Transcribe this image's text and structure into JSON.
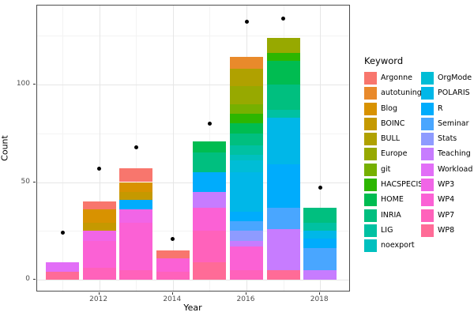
{
  "figure": {
    "ylabel": "Count",
    "xlabel": "Year"
  },
  "legend": {
    "title": "Keyword",
    "columns": [
      12,
      11
    ]
  },
  "palette": [
    {
      "name": "Argonne",
      "color": "#F8766D"
    },
    {
      "name": "autotuning",
      "color": "#E98A2B"
    },
    {
      "name": "Blog",
      "color": "#D89200"
    },
    {
      "name": "BOINC",
      "color": "#C59900"
    },
    {
      "name": "BULL",
      "color": "#B0A100"
    },
    {
      "name": "Europe",
      "color": "#97A900"
    },
    {
      "name": "git",
      "color": "#76B000"
    },
    {
      "name": "HACSPECIS",
      "color": "#2CB600"
    },
    {
      "name": "HOME",
      "color": "#00BC51"
    },
    {
      "name": "INRIA",
      "color": "#00BF7F"
    },
    {
      "name": "LIG",
      "color": "#00C1A2"
    },
    {
      "name": "noexport",
      "color": "#00C0BF"
    },
    {
      "name": "OrgMode",
      "color": "#00BDD6"
    },
    {
      "name": "POLARIS",
      "color": "#00B7E8"
    },
    {
      "name": "R",
      "color": "#00ACFC"
    },
    {
      "name": "Seminar",
      "color": "#49A6FF"
    },
    {
      "name": "Stats",
      "color": "#8E9BFF"
    },
    {
      "name": "Teaching",
      "color": "#C77CFF"
    },
    {
      "name": "Workload",
      "color": "#E26EF7"
    },
    {
      "name": "WP3",
      "color": "#F165E7"
    },
    {
      "name": "WP4",
      "color": "#FB61D5"
    },
    {
      "name": "WP7",
      "color": "#FF62BB"
    },
    {
      "name": "WP8",
      "color": "#FF6B97"
    }
  ],
  "chart_data": {
    "type": "bar",
    "stacked": true,
    "title": "",
    "xlabel": "Year",
    "ylabel": "Count",
    "legend_title": "Keyword",
    "legend_position": "right",
    "grid": true,
    "ylim": [
      0,
      140
    ],
    "y_major_ticks": [
      0,
      50,
      100
    ],
    "y_minor_gridlines": [
      25,
      75,
      125
    ],
    "x_major_ticks": [
      2012,
      2014,
      2016,
      2018
    ],
    "x_minor_gridlines": [
      2011,
      2013,
      2015,
      2017
    ],
    "point_series_note": "black dots above each bar",
    "bars": [
      {
        "year": 2011,
        "point": 24,
        "segments": [
          {
            "keyword": "WP8",
            "value": 4
          },
          {
            "keyword": "Workload",
            "value": 5
          }
        ]
      },
      {
        "year": 2012,
        "point": 57,
        "segments": [
          {
            "keyword": "WP7",
            "value": 6
          },
          {
            "keyword": "WP4",
            "value": 14
          },
          {
            "keyword": "WP3",
            "value": 5
          },
          {
            "keyword": "BOINC",
            "value": 4
          },
          {
            "keyword": "Blog",
            "value": 7
          },
          {
            "keyword": "Argonne",
            "value": 4
          }
        ]
      },
      {
        "year": 2013,
        "point": 68,
        "segments": [
          {
            "keyword": "WP7",
            "value": 5
          },
          {
            "keyword": "WP4",
            "value": 24
          },
          {
            "keyword": "WP3",
            "value": 7
          },
          {
            "keyword": "R",
            "value": 5
          },
          {
            "keyword": "BOINC",
            "value": 4
          },
          {
            "keyword": "Blog",
            "value": 5
          },
          {
            "keyword": "Argonne",
            "value": 7
          }
        ]
      },
      {
        "year": 2014,
        "point": 21,
        "segments": [
          {
            "keyword": "WP7",
            "value": 4
          },
          {
            "keyword": "WP4",
            "value": 7
          },
          {
            "keyword": "Argonne",
            "value": 4
          }
        ]
      },
      {
        "year": 2015,
        "point": 80,
        "segments": [
          {
            "keyword": "WP8",
            "value": 9
          },
          {
            "keyword": "WP7",
            "value": 16
          },
          {
            "keyword": "WP4",
            "value": 12
          },
          {
            "keyword": "Teaching",
            "value": 8
          },
          {
            "keyword": "R",
            "value": 10
          },
          {
            "keyword": "INRIA",
            "value": 10
          },
          {
            "keyword": "HOME",
            "value": 6
          }
        ]
      },
      {
        "year": 2016,
        "point": 132,
        "segments": [
          {
            "keyword": "WP7",
            "value": 5
          },
          {
            "keyword": "WP4",
            "value": 12
          },
          {
            "keyword": "Teaching",
            "value": 3
          },
          {
            "keyword": "Stats",
            "value": 5
          },
          {
            "keyword": "Seminar",
            "value": 5
          },
          {
            "keyword": "R",
            "value": 5
          },
          {
            "keyword": "POLARIS",
            "value": 20
          },
          {
            "keyword": "OrgMode",
            "value": 6
          },
          {
            "keyword": "noexport",
            "value": 3
          },
          {
            "keyword": "LIG",
            "value": 5
          },
          {
            "keyword": "INRIA",
            "value": 6
          },
          {
            "keyword": "HOME",
            "value": 5
          },
          {
            "keyword": "HACSPECIS",
            "value": 5
          },
          {
            "keyword": "git",
            "value": 5
          },
          {
            "keyword": "Europe",
            "value": 9
          },
          {
            "keyword": "BULL",
            "value": 9
          },
          {
            "keyword": "autotuning",
            "value": 6
          }
        ]
      },
      {
        "year": 2017,
        "point": 134,
        "segments": [
          {
            "keyword": "WP8",
            "value": 5
          },
          {
            "keyword": "Teaching",
            "value": 21
          },
          {
            "keyword": "Seminar",
            "value": 11
          },
          {
            "keyword": "R",
            "value": 22
          },
          {
            "keyword": "POLARIS",
            "value": 24
          },
          {
            "keyword": "LIG",
            "value": 4
          },
          {
            "keyword": "INRIA",
            "value": 13
          },
          {
            "keyword": "HOME",
            "value": 12
          },
          {
            "keyword": "HACSPECIS",
            "value": 4
          },
          {
            "keyword": "Europe",
            "value": 8
          }
        ]
      },
      {
        "year": 2018,
        "point": 47,
        "segments": [
          {
            "keyword": "Teaching",
            "value": 5
          },
          {
            "keyword": "Seminar",
            "value": 11
          },
          {
            "keyword": "R",
            "value": 5
          },
          {
            "keyword": "POLARIS",
            "value": 4
          },
          {
            "keyword": "LIG",
            "value": 4
          },
          {
            "keyword": "INRIA",
            "value": 8
          }
        ]
      }
    ]
  }
}
